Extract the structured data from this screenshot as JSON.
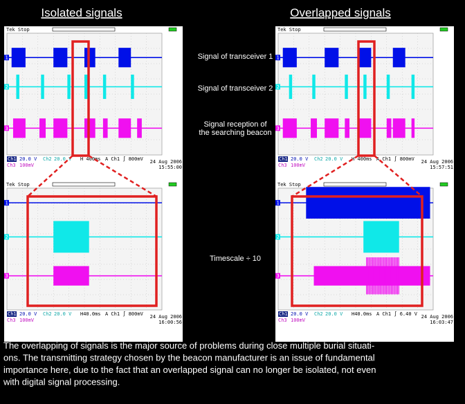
{
  "headers": [
    "Isolated signals",
    "Overlapped signals"
  ],
  "labels": [
    {
      "lines": [
        "Signal of transceiver 1"
      ]
    },
    {
      "lines": [
        "Signal of transceiver 2"
      ]
    },
    {
      "lines": [
        "Signal reception of",
        "the searching beacon"
      ]
    },
    {
      "lines": [
        "Timescale ÷ 10"
      ]
    }
  ],
  "channel_names": [
    "Ch1",
    "Ch2",
    "Ch3"
  ],
  "channel_numbers": [
    "1",
    "2",
    "3"
  ],
  "scopes": [
    {
      "status": "Tek Stop",
      "ch1": "20.0 V",
      "ch2": "20.0 V",
      "ch3": "100mV",
      "timebase": "H 400ms",
      "trigger": "A Ch1 ∫ 800mV",
      "date": "24 Aug 2006",
      "time": "15:55:00"
    },
    {
      "status": "Tek Stop",
      "ch1": "20.0 V",
      "ch2": "20.0 V",
      "ch3": "100mV",
      "timebase": "H 400ms",
      "trigger": "A Ch1 ∫ 800mV",
      "date": "24 Aug 2006",
      "time": "15:57:51"
    },
    {
      "status": "Tek Stop",
      "ch1": "20.0 V",
      "ch2": "20.0 V",
      "ch3": "100mV",
      "timebase": "H40.0ms",
      "trigger": "A Ch1 ∫ 800mV",
      "date": "24 Aug 2006",
      "time": "16:00:56"
    },
    {
      "status": "Tek Stop",
      "ch1": "20.0 V",
      "ch2": "20.0 V",
      "ch3": "100mV",
      "timebase": "H40.0ms",
      "trigger": "A Ch1 ∫ 6.40 V",
      "date": "24 Aug 2006",
      "time": "16:03:47"
    }
  ],
  "caption": {
    "lines": [
      "The overlapping of signals is the major source of problems during close multiple burial situati-",
      "ons. The transmitting strategy chosen by the beacon manufacturer is an issue of fundamental",
      "importance here, due to the fact that an overlapped signal can no longer be isolated, not even",
      "with digital signal processing."
    ]
  }
}
